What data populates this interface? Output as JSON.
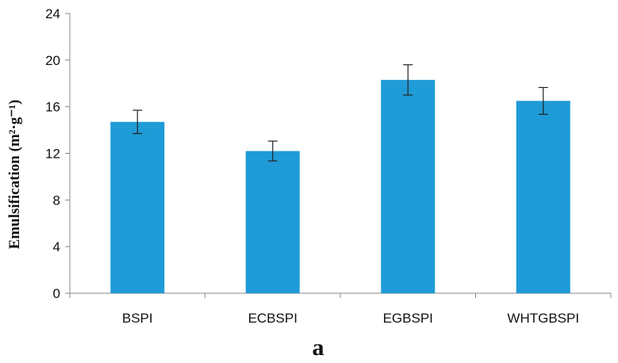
{
  "chart_data": {
    "type": "bar",
    "categories": [
      "BSPI",
      "ECBSPI",
      "EGBSPI",
      "WHTGBSPI"
    ],
    "values": [
      14.7,
      12.2,
      18.3,
      16.5
    ],
    "errors": [
      1.0,
      0.85,
      1.3,
      1.15
    ],
    "ylabel": "Emulsification (m²·g⁻¹)",
    "ylim": [
      0,
      24
    ],
    "yticks": [
      0,
      4,
      8,
      12,
      16,
      20,
      24
    ],
    "bar_color": "#1f9bd7",
    "axis_color": "#888888",
    "grid": false,
    "panel_label": "a"
  }
}
